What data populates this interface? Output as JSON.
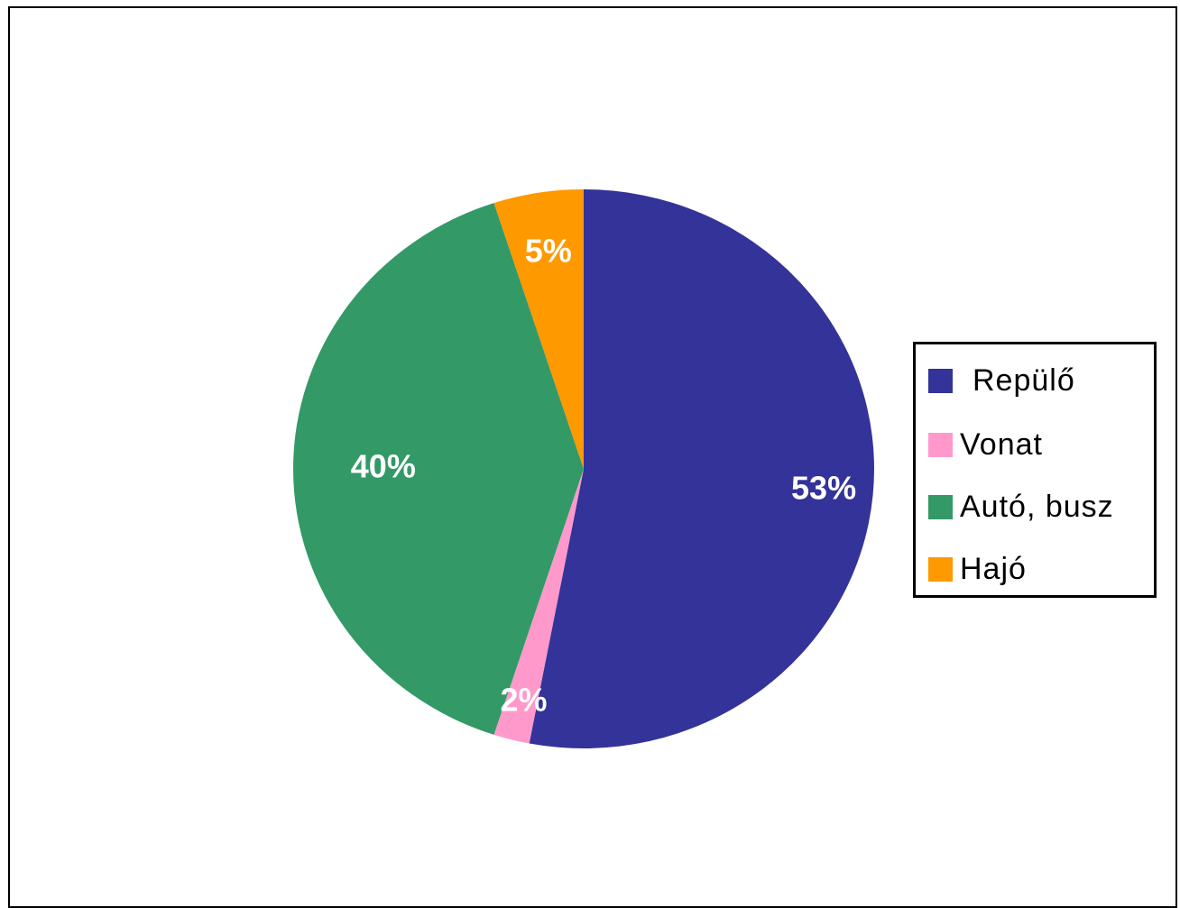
{
  "chart_data": {
    "type": "pie",
    "title": "",
    "slices": [
      {
        "name": "Repülő",
        "value": 53,
        "label": "53%",
        "color": "#333399"
      },
      {
        "name": "Vonat",
        "value": 2,
        "label": "2%",
        "color": "#ff99cc"
      },
      {
        "name": "Autó, busz",
        "value": 40,
        "label": "40%",
        "color": "#339966"
      },
      {
        "name": "Hajó",
        "value": 5,
        "label": "5%",
        "color": "#ff9900"
      }
    ],
    "start_angle": "12 o'clock",
    "direction": "clockwise",
    "legend_position": "right"
  },
  "legend": {
    "items": [
      {
        "label": "Repülő",
        "color": "#333399"
      },
      {
        "label": "Vonat",
        "color": "#ff99cc"
      },
      {
        "label": "Autó, busz",
        "color": "#339966"
      },
      {
        "label": "Hajó",
        "color": "#ff9900"
      }
    ]
  }
}
